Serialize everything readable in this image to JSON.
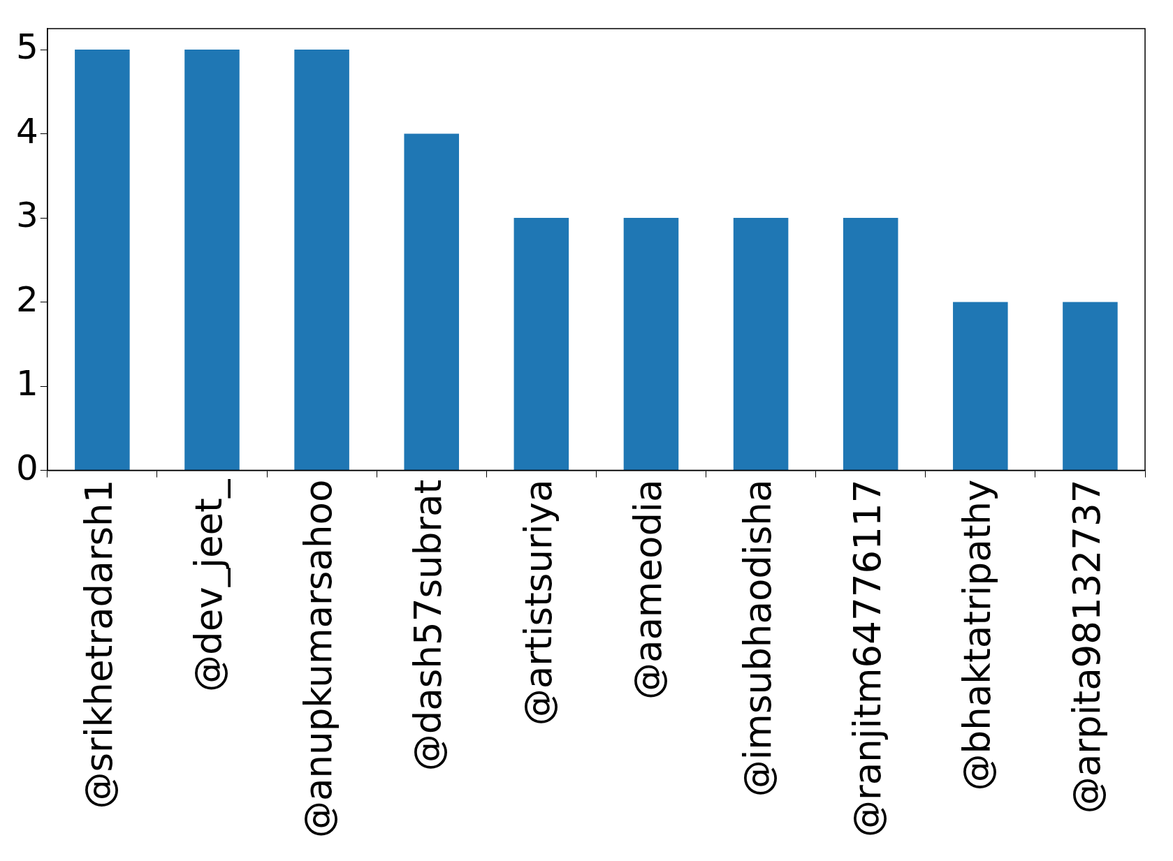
{
  "chart_data": {
    "type": "bar",
    "categories": [
      "@srikhetradarsh1",
      "@dev_jeet_",
      "@anupkumarsahoo",
      "@dash57subrat",
      "@artistsuriya",
      "@aameodia",
      "@imsubhaodisha",
      "@ranjitm64776117",
      "@bhaktatripathy",
      "@arpita98132737"
    ],
    "values": [
      5,
      5,
      5,
      4,
      3,
      3,
      3,
      3,
      2,
      2
    ],
    "color": "#1f77b4",
    "ylim": [
      0,
      5.25
    ],
    "yticks": [
      0,
      1,
      2,
      3,
      4,
      5
    ],
    "grid": false,
    "legend": false
  }
}
